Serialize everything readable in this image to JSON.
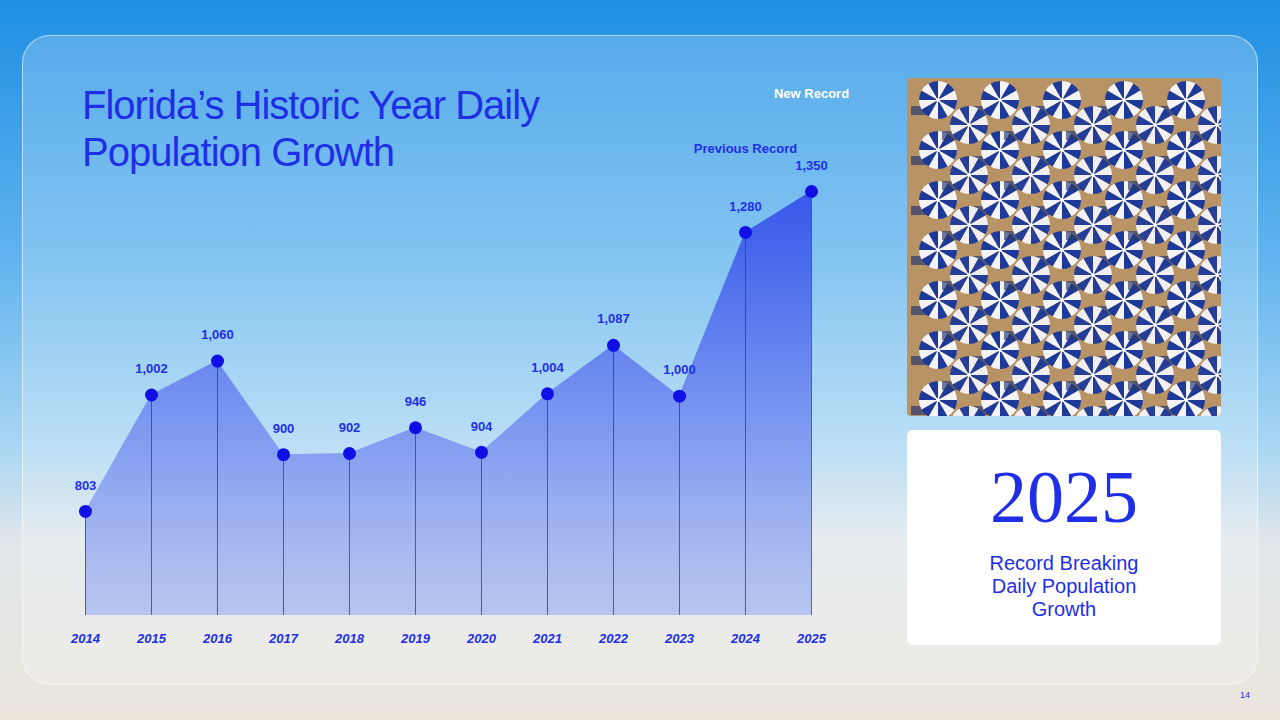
{
  "chart_data": {
    "type": "area",
    "title": "Florida’s Historic Year Daily Population Growth",
    "categories": [
      "2014",
      "2015",
      "2016",
      "2017",
      "2018",
      "2019",
      "2020",
      "2021",
      "2022",
      "2023",
      "2024",
      "2025"
    ],
    "values": [
      803,
      1002,
      1060,
      900,
      902,
      946,
      904,
      1004,
      1087,
      1000,
      1280,
      1350
    ],
    "value_labels": [
      "803",
      "1,002",
      "1,060",
      "900",
      "902",
      "946",
      "904",
      "1,004",
      "1,087",
      "1,000",
      "1,280",
      "1,350"
    ],
    "color": "#1f2fe8",
    "marker": "circle",
    "data_labels": true,
    "tick_labels": "x",
    "ylim": [
      625,
      1350
    ],
    "yticks": [],
    "annotations": [
      {
        "category": "2024",
        "text": "Previous Record"
      },
      {
        "category": "2025",
        "text": "New Record"
      }
    ]
  },
  "highlight": {
    "headline": "2025",
    "text": "Record Breaking Daily Population Growth"
  },
  "page_number": "14"
}
